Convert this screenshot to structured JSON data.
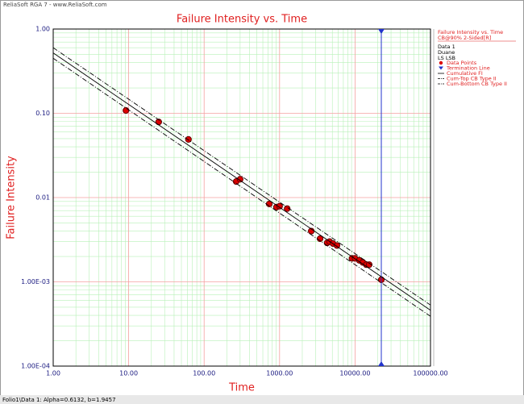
{
  "header": "ReliaSoft RGA 7 - www.ReliaSoft.com",
  "chart_data": {
    "type": "scatter",
    "title": "Failure Intensity vs. Time",
    "x_label": "Time",
    "y_label": "Failure Intensity",
    "log_x": true,
    "log_y": true,
    "grid": true,
    "xlim": [
      1,
      100000
    ],
    "ylim": [
      0.0001,
      1
    ],
    "xticks": [
      {
        "value": 1,
        "label": "1.00"
      },
      {
        "value": 10,
        "label": "10.00"
      },
      {
        "value": 100,
        "label": "100.00"
      },
      {
        "value": 1000,
        "label": "1000.00"
      },
      {
        "value": 10000,
        "label": "10000.00"
      },
      {
        "value": 100000,
        "label": "100000.00"
      }
    ],
    "yticks": [
      {
        "value": 0.0001,
        "label": "1.00E-04"
      },
      {
        "value": 0.001,
        "label": "1.00E-03"
      },
      0.01,
      {
        "value": 0.1,
        "label": "0.10"
      },
      {
        "value": 1,
        "label": "1.00"
      }
    ],
    "legend_heading": [
      "Failure Intensity vs. Time",
      "CB@90% 2-Sided[R]",
      "Data 1",
      "Duane",
      "LS LSB"
    ],
    "series": [
      {
        "name": "Data Points",
        "kind": "points",
        "color": "#dd0000",
        "x": [
          9.2,
          25,
          62,
          266,
          300,
          730,
          910,
          1000,
          1260,
          2630,
          3440,
          4270,
          4600,
          5100,
          5760,
          9130,
          10000,
          11400,
          12700,
          14100,
          15400,
          22300
        ],
        "values": [
          0.108,
          0.079,
          0.049,
          0.0155,
          0.0165,
          0.0084,
          0.0077,
          0.0079,
          0.0074,
          0.004,
          0.00325,
          0.0029,
          0.003,
          0.00285,
          0.0027,
          0.0019,
          0.0019,
          0.0018,
          0.0017,
          0.0016,
          0.0016,
          0.00106
        ]
      },
      {
        "name": "Termination Line",
        "kind": "vline",
        "color": "#2233cc",
        "x": [
          22300
        ]
      },
      {
        "name": "Cumulative FI",
        "kind": "solid",
        "color": "#000000",
        "x": [
          1,
          100000
        ],
        "values": [
          0.52,
          0.00046
        ]
      },
      {
        "name": "Cum-Top CB Type II",
        "kind": "dashdot",
        "color": "#000000",
        "x": [
          1,
          100000
        ],
        "values": [
          0.6,
          0.00053
        ]
      },
      {
        "name": "Cum-Bottom CB Type II",
        "kind": "dashdot",
        "color": "#000000",
        "x": [
          1,
          100000
        ],
        "values": [
          0.45,
          0.00039
        ]
      }
    ]
  },
  "status": "Folio1\\Data 1: Alpha=0.6132, b=1.9457"
}
